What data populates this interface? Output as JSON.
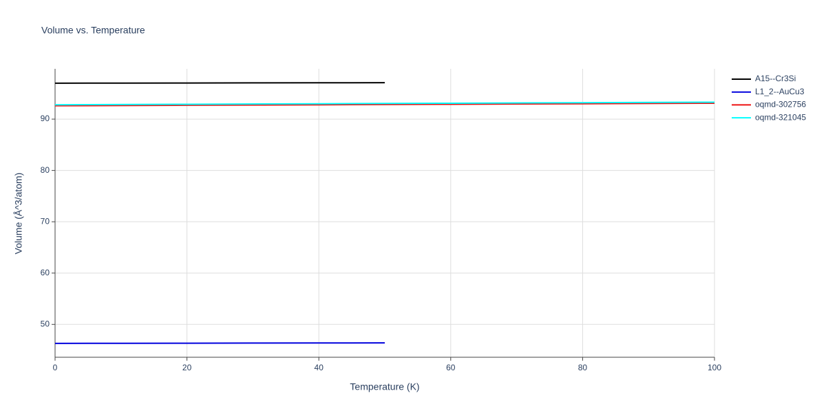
{
  "chart_data": {
    "type": "line",
    "title": "Volume vs. Temperature",
    "x_label": "Temperature (K)",
    "y_label": "Volume (Å^3/atom)",
    "series": [
      {
        "name": "A15--Cr3Si",
        "color": "#000000",
        "x": [
          0,
          10,
          20,
          30,
          40,
          50
        ],
        "values": [
          97.0,
          97.02,
          97.04,
          97.06,
          97.08,
          97.1
        ]
      },
      {
        "name": "L1_2--AuCu3",
        "color": "#0000dd",
        "x": [
          0,
          10,
          20,
          30,
          40,
          50
        ],
        "values": [
          46.3,
          46.32,
          46.34,
          46.36,
          46.38,
          46.4
        ]
      },
      {
        "name": "oqmd-302756",
        "color": "#ee1111",
        "x": [
          0,
          20,
          40,
          60,
          80,
          100
        ],
        "values": [
          92.6,
          92.7,
          92.8,
          92.9,
          93.0,
          93.1
        ]
      },
      {
        "name": "oqmd-321045",
        "color": "#00ffff",
        "x": [
          0,
          20,
          40,
          60,
          80,
          100
        ],
        "values": [
          92.8,
          92.9,
          93.0,
          93.1,
          93.2,
          93.3
        ]
      }
    ],
    "xlim": [
      0,
      100
    ],
    "xticks": [
      0,
      20,
      40,
      60,
      80,
      100
    ],
    "ylim": [
      43.6,
      99.8
    ],
    "yticks": [
      50,
      60,
      70,
      80,
      90
    ],
    "grid": true,
    "legend": "right"
  }
}
